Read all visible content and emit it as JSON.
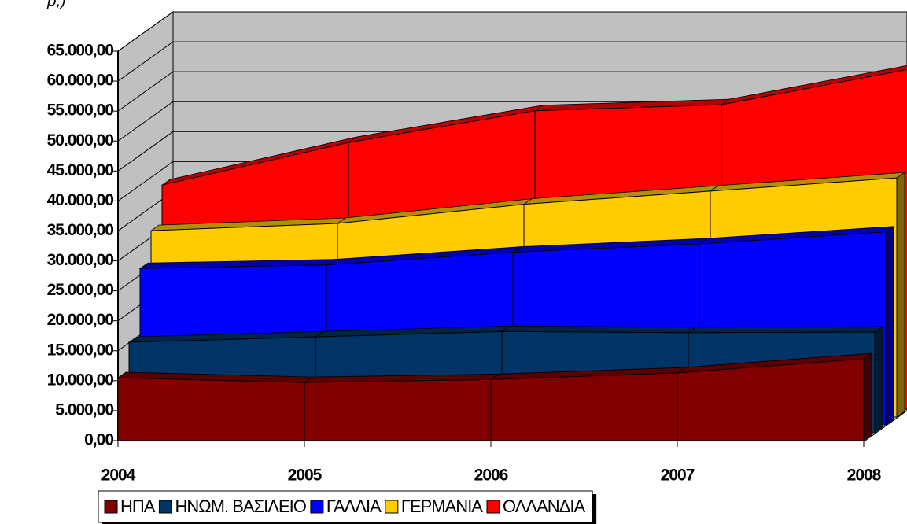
{
  "chart_data": {
    "type": "area3d",
    "subtitle": "ρ,)",
    "categories": [
      "2004",
      "2005",
      "2006",
      "2007",
      "2008"
    ],
    "series": [
      {
        "name": "ΗΠΑ",
        "color": "#800000",
        "values": [
          10500,
          9700,
          10200,
          11300,
          13650
        ]
      },
      {
        "name": "ΗΝΩΜ. ΒΑΣΙΛΕΙΟ",
        "color": "#003366",
        "values": [
          15100,
          16000,
          16900,
          16700,
          16800
        ]
      },
      {
        "name": "ΓΑΛΛΙΑ",
        "color": "#0000ff",
        "values": [
          26100,
          26700,
          28800,
          30200,
          32200
        ]
      },
      {
        "name": "ΓΕΡΜΑΝΙΑ",
        "color": "#ffcc00",
        "values": [
          31100,
          32300,
          35500,
          37700,
          39900
        ]
      },
      {
        "name": "ΟΛΛΑΝΔΙΑ",
        "color": "#ff0000",
        "values": [
          37400,
          44500,
          49800,
          50800,
          56700
        ]
      }
    ],
    "ylim": [
      0,
      65000
    ],
    "yticks": [
      {
        "value": 0,
        "label": "0,00"
      },
      {
        "value": 5000,
        "label": "5.000,00"
      },
      {
        "value": 10000,
        "label": "10.000,00"
      },
      {
        "value": 15000,
        "label": "15.000,00"
      },
      {
        "value": 20000,
        "label": "20.000,00"
      },
      {
        "value": 25000,
        "label": "25.000,00"
      },
      {
        "value": 30000,
        "label": "30.000,00"
      },
      {
        "value": 35000,
        "label": "35.000,00"
      },
      {
        "value": 40000,
        "label": "40.000,00"
      },
      {
        "value": 45000,
        "label": "45.000,00"
      },
      {
        "value": 50000,
        "label": "50.000,00"
      },
      {
        "value": 55000,
        "label": "55.000,00"
      },
      {
        "value": 60000,
        "label": "60.000,00"
      },
      {
        "value": 65000,
        "label": "65.000,00"
      }
    ],
    "grid": true,
    "legend": "bottom"
  }
}
